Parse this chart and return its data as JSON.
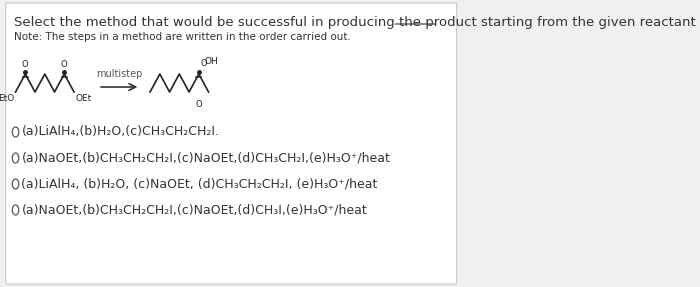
{
  "title": "Select the method that would be successful in producing the product starting from the given reactant in good yield",
  "title_underline_word": "good yield",
  "note": "Note: The steps in a method are written in the order carried out.",
  "background_color": "#f0f0f0",
  "panel_color": "#ffffff",
  "options": [
    "(a)LiAlH₄,(b)H₂O,(c)CH₃CH₂CH₂I.",
    "(a)NaOEt,(b)CH₃CH₂CH₂I,(c)NaOEt,(d)CH₃CH₂I,(e)H₃O⁺/heat",
    "(a)LiAlH₄, (b)H₂O, (c)NaOEt, (d)CH₃CH₂CH₂I, (e)H₃O⁺/heat",
    "(a)NaOEt,(b)CH₃CH₂CH₂I,(c)NaOEt,(d)CH₃I,(e)H₃O⁺/heat"
  ],
  "arrow_label": "multistep",
  "reactant_label_left": "EtO",
  "reactant_label_right": "OEt",
  "font_size_title": 9.5,
  "font_size_note": 7.5,
  "font_size_options": 9,
  "font_size_arrow": 7,
  "text_color": "#333333"
}
